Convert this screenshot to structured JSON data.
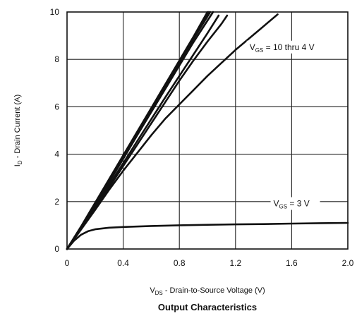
{
  "chart_data": {
    "type": "line",
    "caption": "Output Characteristics",
    "xlabel": {
      "base": "V",
      "sub": "DS",
      "rest": " - Drain-to-Source Voltage (V)"
    },
    "ylabel": {
      "base": "I",
      "sub": "D",
      "rest": " - Drain Current (A)"
    },
    "xlim": [
      0,
      2.0
    ],
    "ylim": [
      0,
      10
    ],
    "x_ticks": [
      "0",
      "0.4",
      "0.8",
      "1.2",
      "1.6",
      "2.0"
    ],
    "y_ticks": [
      "0",
      "2",
      "4",
      "6",
      "8",
      "10"
    ],
    "grid": true,
    "annotations": [
      {
        "base": "V",
        "sub": "GS",
        "rest": " = 10 thru 4 V",
        "at_x": 1.3,
        "at_y": 8.4
      },
      {
        "base": "V",
        "sub": "GS",
        "rest": " = 3 V",
        "at_x": 1.47,
        "at_y": 1.8
      }
    ],
    "series": [
      {
        "values": [
          [
            0,
            0
          ],
          [
            0.1,
            0.95
          ],
          [
            0.2,
            1.95
          ],
          [
            0.3,
            2.95
          ],
          [
            0.4,
            3.95
          ],
          [
            0.5,
            4.95
          ],
          [
            0.6,
            5.95
          ],
          [
            0.7,
            6.95
          ],
          [
            0.8,
            7.95
          ],
          [
            0.9,
            8.95
          ],
          [
            1.0,
            10.0
          ]
        ]
      },
      {
        "values": [
          [
            0,
            0
          ],
          [
            0.1,
            0.93
          ],
          [
            0.2,
            1.91
          ],
          [
            0.3,
            2.9
          ],
          [
            0.4,
            3.9
          ],
          [
            0.5,
            4.9
          ],
          [
            0.6,
            5.9
          ],
          [
            0.7,
            6.9
          ],
          [
            0.8,
            7.9
          ],
          [
            0.9,
            8.9
          ],
          [
            1.01,
            10.0
          ]
        ]
      },
      {
        "values": [
          [
            0,
            0
          ],
          [
            0.1,
            0.92
          ],
          [
            0.2,
            1.88
          ],
          [
            0.3,
            2.86
          ],
          [
            0.4,
            3.85
          ],
          [
            0.5,
            4.85
          ],
          [
            0.6,
            5.85
          ],
          [
            0.7,
            6.85
          ],
          [
            0.8,
            7.85
          ],
          [
            0.9,
            8.85
          ],
          [
            1.02,
            10.0
          ]
        ]
      },
      {
        "values": [
          [
            0,
            0
          ],
          [
            0.1,
            0.91
          ],
          [
            0.2,
            1.85
          ],
          [
            0.3,
            2.82
          ],
          [
            0.4,
            3.8
          ],
          [
            0.5,
            4.8
          ],
          [
            0.6,
            5.78
          ],
          [
            0.7,
            6.76
          ],
          [
            0.8,
            7.74
          ],
          [
            0.9,
            8.72
          ],
          [
            1.04,
            10.0
          ]
        ]
      },
      {
        "values": [
          [
            0,
            0
          ],
          [
            0.1,
            0.88
          ],
          [
            0.2,
            1.78
          ],
          [
            0.3,
            2.7
          ],
          [
            0.4,
            3.62
          ],
          [
            0.5,
            4.55
          ],
          [
            0.6,
            5.48
          ],
          [
            0.7,
            6.4
          ],
          [
            0.8,
            7.3
          ],
          [
            0.9,
            8.2
          ],
          [
            1.0,
            9.1
          ],
          [
            1.08,
            9.85
          ]
        ]
      },
      {
        "values": [
          [
            0,
            0
          ],
          [
            0.1,
            0.85
          ],
          [
            0.2,
            1.72
          ],
          [
            0.3,
            2.6
          ],
          [
            0.4,
            3.5
          ],
          [
            0.5,
            4.4
          ],
          [
            0.6,
            5.3
          ],
          [
            0.7,
            6.2
          ],
          [
            0.8,
            7.1
          ],
          [
            0.9,
            7.95
          ],
          [
            1.0,
            8.75
          ],
          [
            1.1,
            9.5
          ],
          [
            1.14,
            9.85
          ]
        ]
      },
      {
        "values": [
          [
            0,
            0
          ],
          [
            0.1,
            0.82
          ],
          [
            0.2,
            1.65
          ],
          [
            0.3,
            2.5
          ],
          [
            0.4,
            3.3
          ],
          [
            0.5,
            4.05
          ],
          [
            0.6,
            4.8
          ],
          [
            0.7,
            5.5
          ],
          [
            0.8,
            6.1
          ],
          [
            0.9,
            6.7
          ],
          [
            1.0,
            7.3
          ],
          [
            1.1,
            7.85
          ],
          [
            1.2,
            8.4
          ],
          [
            1.3,
            8.9
          ],
          [
            1.4,
            9.4
          ],
          [
            1.5,
            9.9
          ]
        ]
      },
      {
        "values": [
          [
            0,
            0
          ],
          [
            0.05,
            0.35
          ],
          [
            0.1,
            0.6
          ],
          [
            0.15,
            0.75
          ],
          [
            0.2,
            0.83
          ],
          [
            0.3,
            0.9
          ],
          [
            0.4,
            0.93
          ],
          [
            0.6,
            0.97
          ],
          [
            0.8,
            1.0
          ],
          [
            1.0,
            1.02
          ],
          [
            1.2,
            1.04
          ],
          [
            1.4,
            1.05
          ],
          [
            1.6,
            1.07
          ],
          [
            1.8,
            1.09
          ],
          [
            2.0,
            1.1
          ]
        ]
      }
    ]
  }
}
